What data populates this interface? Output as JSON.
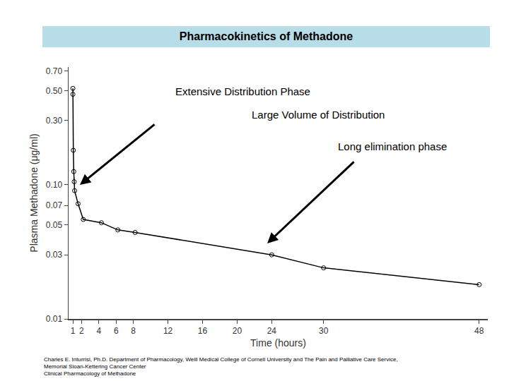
{
  "chart_data": {
    "type": "line",
    "title": "Pharmacokinetics of Methadone",
    "x_label": "Time (hours)",
    "y_label": "Plasma Methadone (μg/ml)",
    "annotations": [
      "Extensive Distribution Phase",
      "Large Volume of Distribution",
      "Long elimination phase"
    ],
    "footnote": [
      "Charles E. Inturrisi, Ph.D. Department of Pharmacology, Weill Medical College of Cornell University and The Pain and Palliative Care Service,",
      "Memorial Sloan-Kettering Cancer Center",
      "Clinical Pharmacology of Methadone"
    ],
    "x": [
      1,
      1,
      1.05,
      1.1,
      1.15,
      1.2,
      1.6,
      2.2,
      4.3,
      6.2,
      8.2,
      24,
      30,
      48
    ],
    "values": [
      0.52,
      0.47,
      0.18,
      0.125,
      0.105,
      0.09,
      0.072,
      0.055,
      0.052,
      0.046,
      0.044,
      0.03,
      0.024,
      0.018
    ],
    "color": "#000000",
    "marker": "circle-open",
    "line_style": "solid",
    "log": "y",
    "grid": false,
    "xlim": [
      0.5,
      49
    ],
    "xticks": [
      1,
      2,
      4,
      6,
      8,
      12,
      16,
      20,
      24,
      30,
      48
    ],
    "ylim": [
      0.01,
      0.75
    ],
    "yticks": [
      0.01,
      0.03,
      0.05,
      0.07,
      {
        "value": 0.1,
        "label": "0.10"
      },
      {
        "value": 0.3,
        "label": "0.30"
      },
      {
        "value": 0.5,
        "label": "0.50"
      },
      {
        "value": 0.7,
        "label": "0.70"
      }
    ]
  }
}
